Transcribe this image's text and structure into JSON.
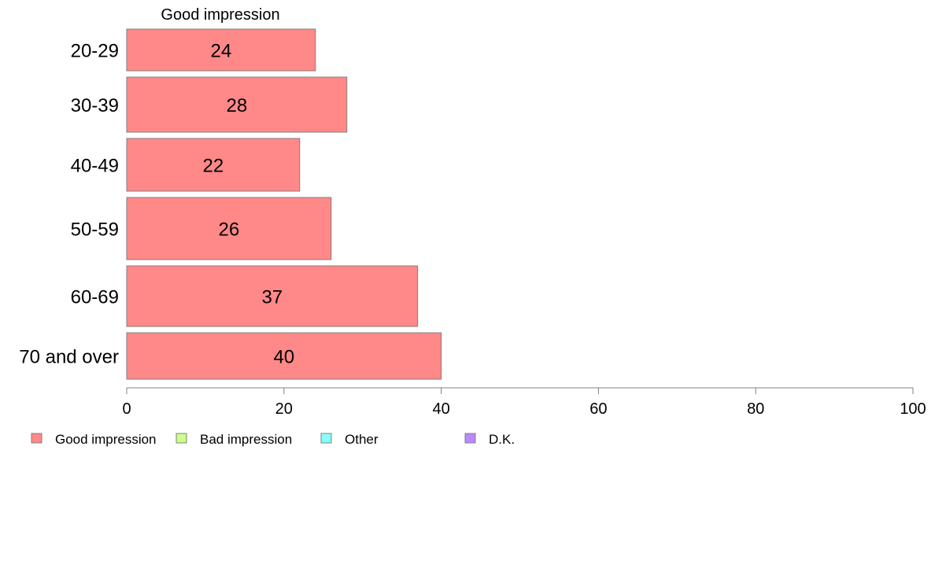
{
  "chart_data": {
    "type": "bar",
    "orientation": "horizontal",
    "series_title": "Good impression",
    "categories": [
      "20-29",
      "30-39",
      "40-49",
      "50-59",
      "60-69",
      "70 and over"
    ],
    "series": [
      {
        "name": "Good impression",
        "values": [
          24,
          28,
          22,
          26,
          37,
          40
        ],
        "color": "#ff8888"
      }
    ],
    "data_labels": [
      "24",
      "28",
      "22",
      "26",
      "37",
      "40"
    ],
    "xlim": [
      0,
      100
    ],
    "xticks": [
      0,
      20,
      40,
      60,
      80,
      100
    ],
    "grid": false,
    "legend": {
      "position": "bottom-left",
      "entries": [
        {
          "name": "Good impression",
          "color": "#ff8888"
        },
        {
          "name": "Bad impression",
          "color": "#ccff88"
        },
        {
          "name": "Other",
          "color": "#88ffff"
        },
        {
          "name": "D.K.",
          "color": "#bb88ff"
        }
      ]
    }
  }
}
